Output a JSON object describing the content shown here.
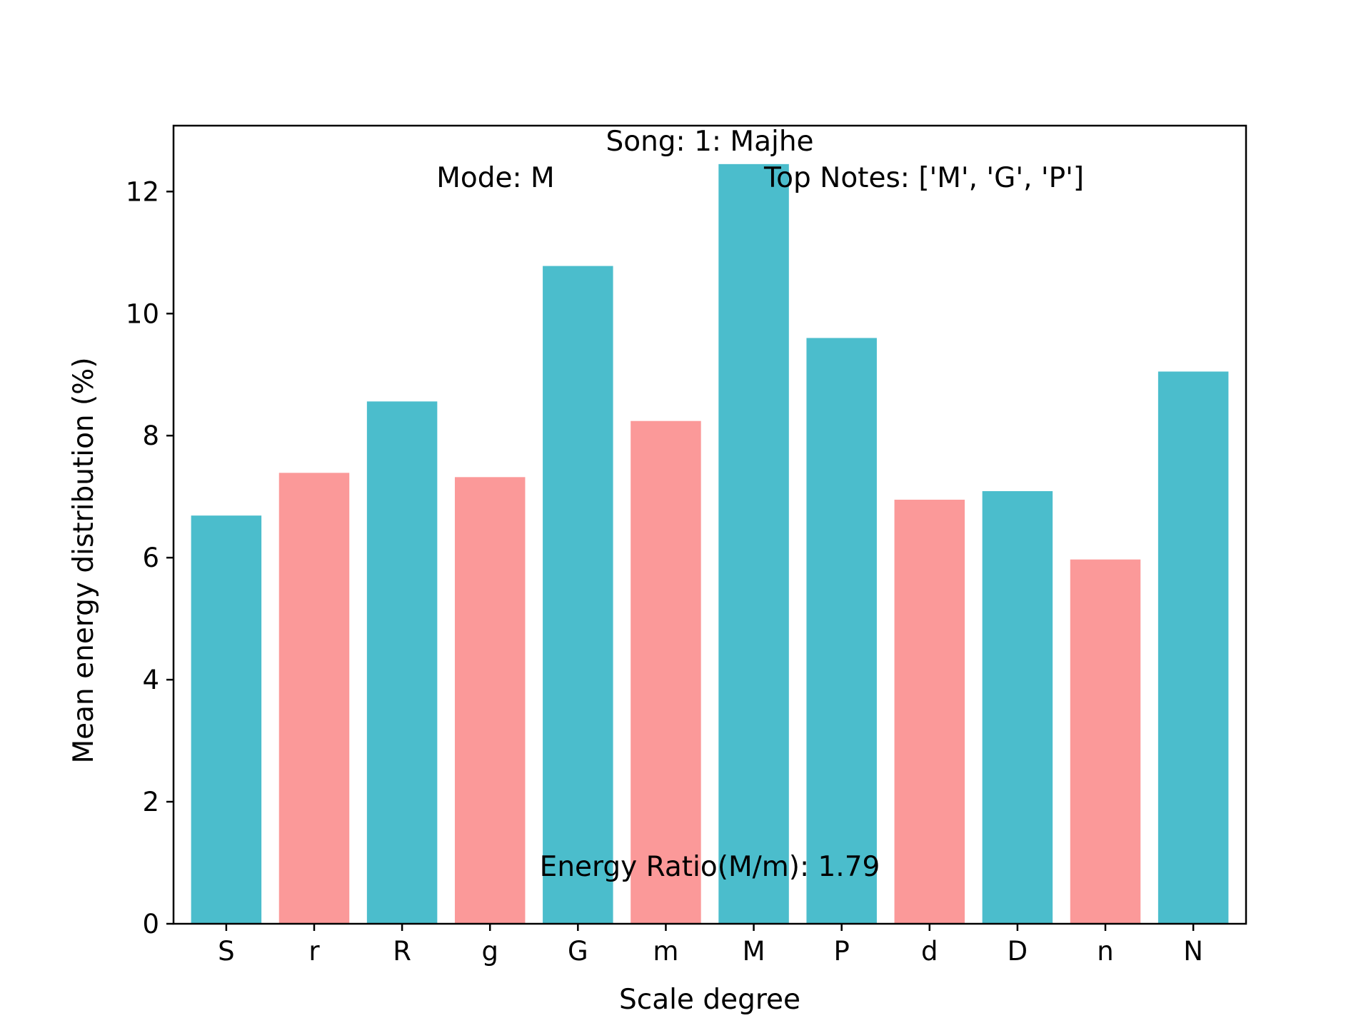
{
  "chart_data": {
    "type": "bar",
    "xlabel": "Scale degree",
    "ylabel": "Mean energy distribution (%)",
    "ylim": [
      0,
      13.08
    ],
    "yticks": [
      0,
      2,
      4,
      6,
      8,
      10,
      12
    ],
    "grid": false,
    "categories": [
      "S",
      "r",
      "R",
      "g",
      "G",
      "m",
      "M",
      "P",
      "d",
      "D",
      "n",
      "N"
    ],
    "values": [
      6.69,
      7.39,
      8.56,
      7.32,
      10.78,
      8.24,
      12.45,
      9.6,
      6.95,
      7.09,
      5.97,
      9.05
    ],
    "bar_kinds": [
      "major",
      "minor",
      "major",
      "minor",
      "major",
      "minor",
      "major",
      "major",
      "minor",
      "major",
      "minor",
      "major"
    ],
    "colors": {
      "major": "#4bbdcc",
      "minor": "#fb9999"
    },
    "annotations": {
      "song": "Song: 1: Majhe",
      "mode": "Mode: M",
      "top_notes": "Top Notes: ['M', 'G', 'P']",
      "energy_ratio": "Energy Ratio(M/m): 1.79"
    }
  }
}
